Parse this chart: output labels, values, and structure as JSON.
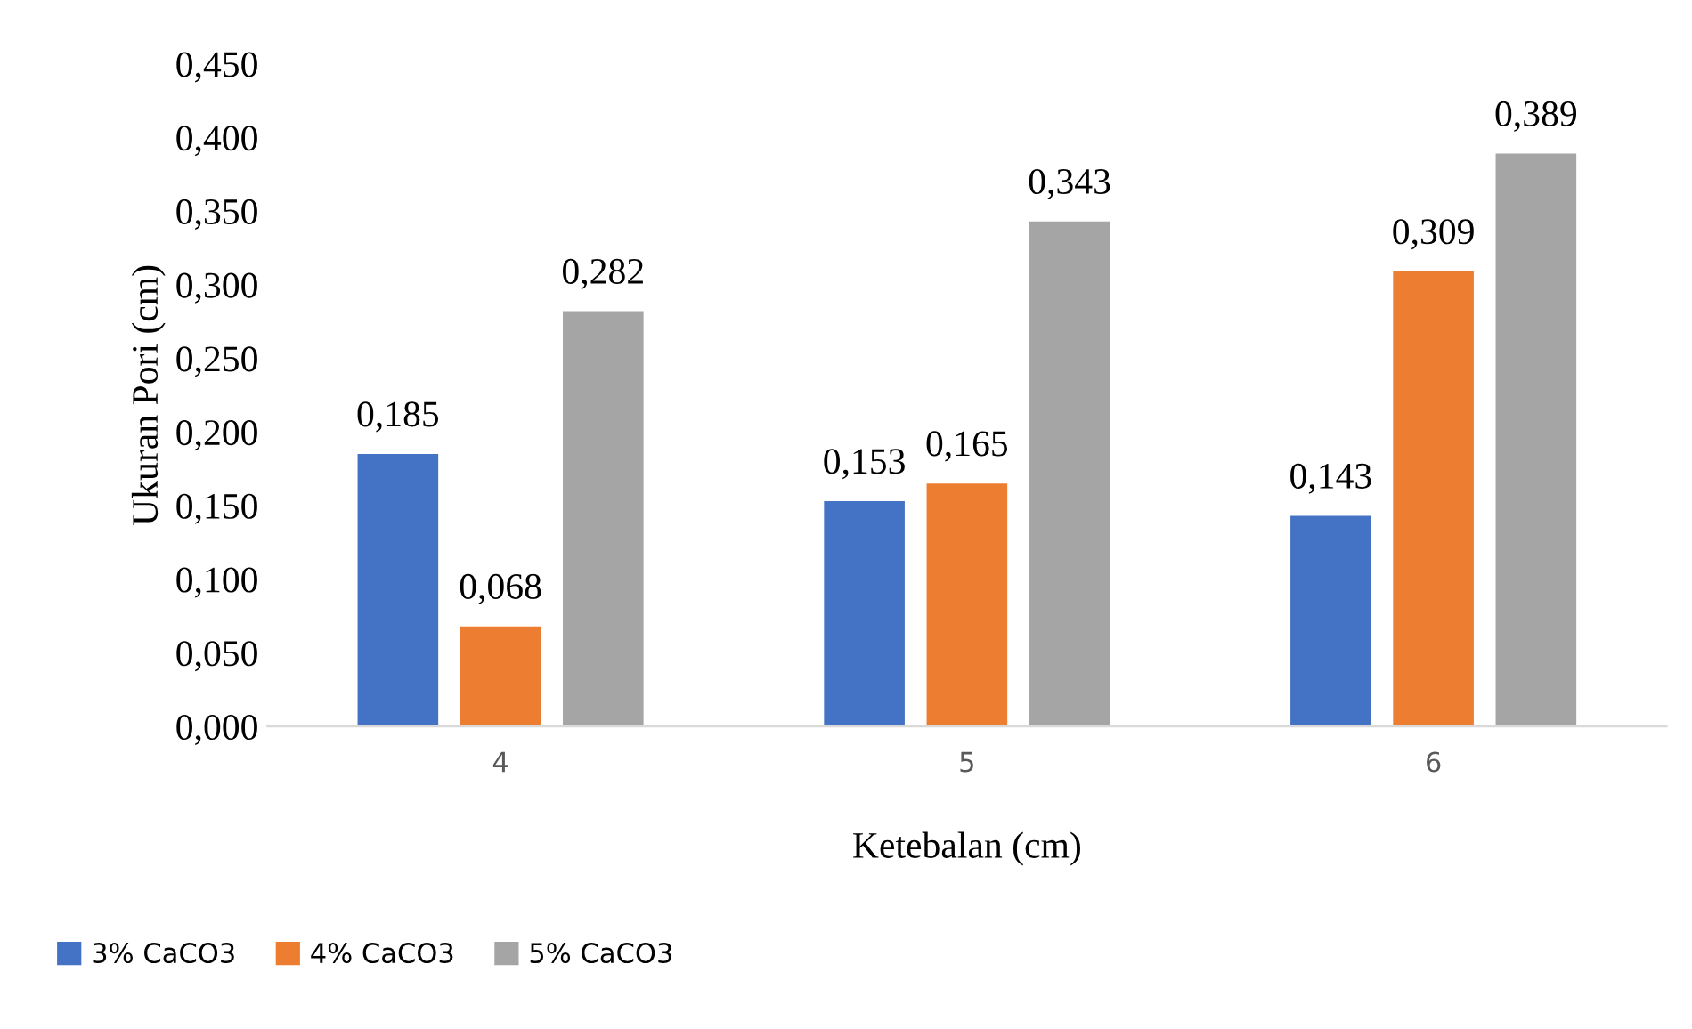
{
  "chart_data": {
    "type": "bar",
    "xlabel": "Ketebalan (cm)",
    "ylabel": "Ukuran Pori (cm)",
    "categories": [
      "4",
      "5",
      "6"
    ],
    "series": [
      {
        "name": "3% CaCO3",
        "color": "#4472c4",
        "values": [
          0.185,
          0.153,
          0.143
        ],
        "value_labels": [
          "0,185",
          "0,153",
          "0,143"
        ]
      },
      {
        "name": "4% CaCO3",
        "color": "#ed7d31",
        "values": [
          0.068,
          0.165,
          0.309
        ],
        "value_labels": [
          "0,068",
          "0,165",
          "0,309"
        ]
      },
      {
        "name": "5% CaCO3",
        "color": "#a5a5a5",
        "values": [
          0.282,
          0.343,
          0.389
        ],
        "value_labels": [
          "0,282",
          "0,343",
          "0,389"
        ]
      }
    ],
    "ylim": [
      0,
      0.45
    ],
    "yticks": [
      {
        "value": 0,
        "label": "0,000"
      },
      {
        "value": 0.05,
        "label": "0,050"
      },
      {
        "value": 0.1,
        "label": "0,100"
      },
      {
        "value": 0.15,
        "label": "0,150"
      },
      {
        "value": 0.2,
        "label": "0,200"
      },
      {
        "value": 0.25,
        "label": "0,250"
      },
      {
        "value": 0.3,
        "label": "0,300"
      },
      {
        "value": 0.35,
        "label": "0,350"
      },
      {
        "value": 0.4,
        "label": "0,400"
      },
      {
        "value": 0.45,
        "label": "0,450"
      }
    ],
    "grid": false,
    "legend": "bottom left"
  }
}
